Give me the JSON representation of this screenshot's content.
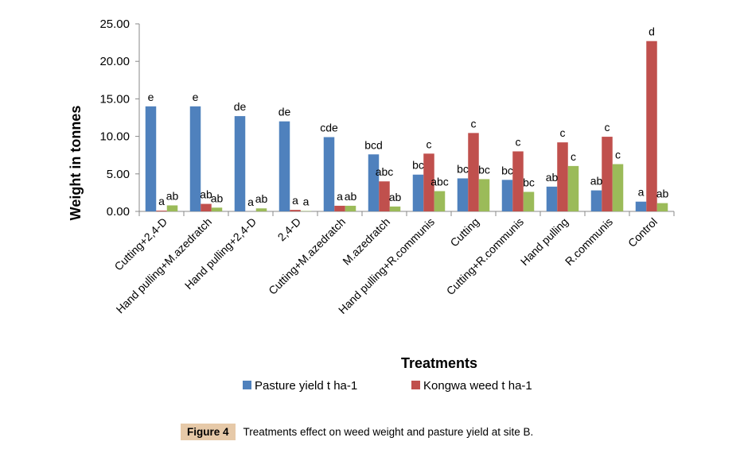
{
  "chart_data": {
    "type": "bar",
    "title": "",
    "xlabel": "Treatments",
    "ylabel": "Weight in tonnes",
    "ylim": [
      0,
      25
    ],
    "yticks": [
      "0.00",
      "5.00",
      "10.00",
      "15.00",
      "20.00",
      "25.00"
    ],
    "ytick_values": [
      0,
      5,
      10,
      15,
      20,
      25
    ],
    "grid": false,
    "legend_position": "bottom",
    "categories": [
      "Cutting+2,4-D",
      "Hand pulling+M.azedratch",
      "Hand pulling+2,4-D",
      "2,4-D",
      "Cutting+M.azedratch",
      "M.azedratch",
      "Hand pulling+R.communis",
      "Cutting",
      "Cutting+R.communis",
      "Hand pulling",
      "R.communis",
      "Control"
    ],
    "series": [
      {
        "name": "Pasture yield t ha-1",
        "color": "#4f81bd",
        "in_legend": true,
        "values": [
          14.0,
          14.0,
          12.7,
          12.0,
          9.9,
          7.6,
          4.9,
          4.4,
          4.2,
          3.3,
          2.8,
          1.3
        ],
        "significance": [
          "e",
          "e",
          "de",
          "de",
          "cde",
          "bcd",
          "bc",
          "bc",
          "bc",
          "ab",
          "ab",
          "a"
        ]
      },
      {
        "name": "Kongwa weed t ha-1",
        "color": "#c0504d",
        "in_legend": true,
        "values": [
          0.1,
          1.0,
          0.0,
          0.2,
          0.75,
          4.0,
          7.7,
          10.45,
          8.0,
          9.2,
          9.95,
          22.7
        ],
        "significance": [
          "a",
          "ab",
          "a",
          "a",
          "a",
          "abc",
          "c",
          "c",
          "c",
          "c",
          "c",
          "d"
        ]
      },
      {
        "name": "",
        "color": "#9bbb59",
        "in_legend": false,
        "values": [
          0.8,
          0.5,
          0.4,
          0.05,
          0.75,
          0.65,
          2.7,
          4.3,
          2.6,
          6.05,
          6.3,
          1.1
        ],
        "significance": [
          "ab",
          "ab",
          "ab",
          "a",
          "ab",
          "ab",
          "abc",
          "bc",
          "bc",
          "c",
          "c",
          "ab"
        ]
      }
    ]
  },
  "caption": {
    "figure_tag": "Figure 4",
    "text": "Treatments effect on weed weight and pasture yield at site B."
  }
}
